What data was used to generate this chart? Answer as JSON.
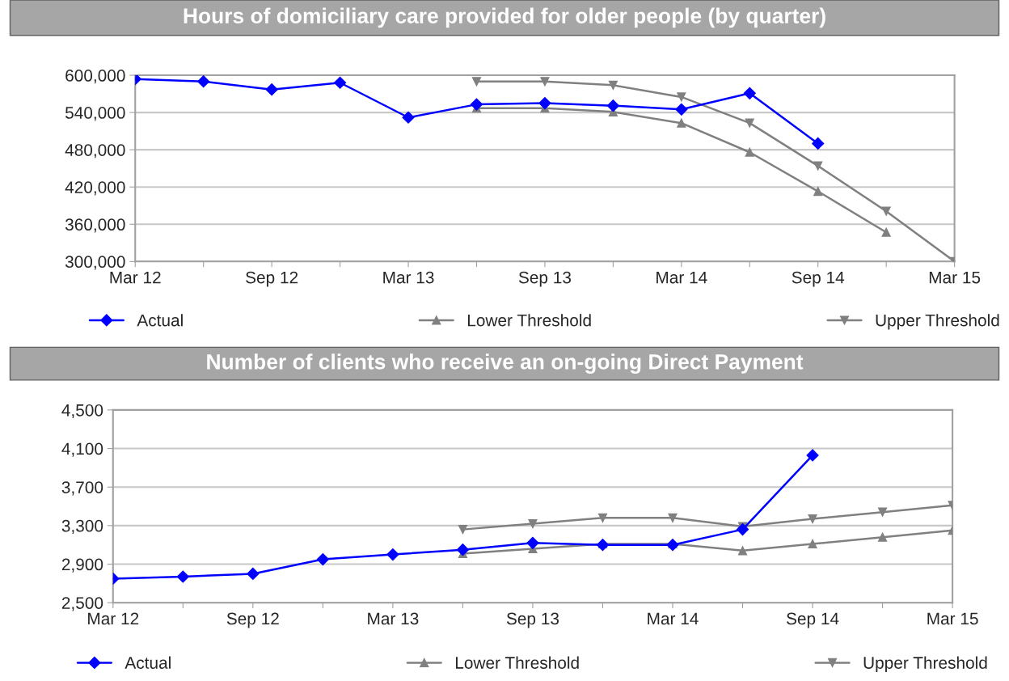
{
  "chart_data": [
    {
      "type": "line",
      "title": "Hours of domiciliary care provided for older people (by quarter)",
      "categories": [
        "Mar 12",
        null,
        "Sep 12",
        null,
        "Mar 13",
        null,
        "Sep 13",
        null,
        "Mar 14",
        null,
        "Sep 14",
        null,
        "Mar 15"
      ],
      "series": [
        {
          "name": "Actual",
          "color": "#0000ff",
          "marker": "diamond",
          "values": [
            594000,
            590000,
            577000,
            588000,
            532000,
            553000,
            555000,
            551000,
            545000,
            571000,
            490000,
            null,
            null
          ]
        },
        {
          "name": "Lower Threshold",
          "color": "#808080",
          "marker": "triangle",
          "values": [
            null,
            null,
            null,
            null,
            null,
            547000,
            547000,
            541000,
            523000,
            476000,
            413000,
            347000,
            null
          ]
        },
        {
          "name": "Upper Threshold",
          "color": "#808080",
          "marker": "triangle_down",
          "values": [
            null,
            null,
            null,
            null,
            null,
            590000,
            590000,
            584000,
            565000,
            523000,
            454000,
            381000,
            300000
          ]
        }
      ],
      "ylim": [
        300000,
        600000
      ],
      "yticks": [
        {
          "value": 300000,
          "label": "300,000"
        },
        {
          "value": 360000,
          "label": "360,000"
        },
        {
          "value": 420000,
          "label": "420,000"
        },
        {
          "value": 480000,
          "label": "480,000"
        },
        {
          "value": 540000,
          "label": "540,000"
        },
        {
          "value": 600000,
          "label": "600,000"
        }
      ],
      "grid": "y",
      "legend": "bottom"
    },
    {
      "type": "line",
      "title": "Number of clients who receive an on-going Direct Payment",
      "categories": [
        "Mar 12",
        null,
        "Sep 12",
        null,
        "Mar 13",
        null,
        "Sep 13",
        null,
        "Mar 14",
        null,
        "Sep 14",
        null,
        "Mar 15"
      ],
      "series": [
        {
          "name": "Actual",
          "color": "#0000ff",
          "marker": "diamond",
          "values": [
            2750,
            2770,
            2800,
            2950,
            3000,
            3050,
            3120,
            3100,
            3100,
            3260,
            4030,
            null,
            null
          ]
        },
        {
          "name": "Lower Threshold",
          "color": "#808080",
          "marker": "triangle",
          "values": [
            null,
            null,
            null,
            null,
            null,
            3010,
            3060,
            3110,
            3110,
            3040,
            3110,
            3180,
            3250
          ]
        },
        {
          "name": "Upper Threshold",
          "color": "#808080",
          "marker": "triangle_down",
          "values": [
            null,
            null,
            null,
            null,
            null,
            3260,
            3320,
            3380,
            3380,
            3290,
            3370,
            3440,
            3510
          ]
        }
      ],
      "ylim": [
        2500,
        4500
      ],
      "yticks": [
        {
          "value": 2500,
          "label": "2,500"
        },
        {
          "value": 2900,
          "label": "2,900"
        },
        {
          "value": 3300,
          "label": "3,300"
        },
        {
          "value": 3700,
          "label": "3,700"
        },
        {
          "value": 4100,
          "label": "4,100"
        },
        {
          "value": 4500,
          "label": "4,500"
        }
      ],
      "grid": "y",
      "legend": "bottom"
    }
  ]
}
